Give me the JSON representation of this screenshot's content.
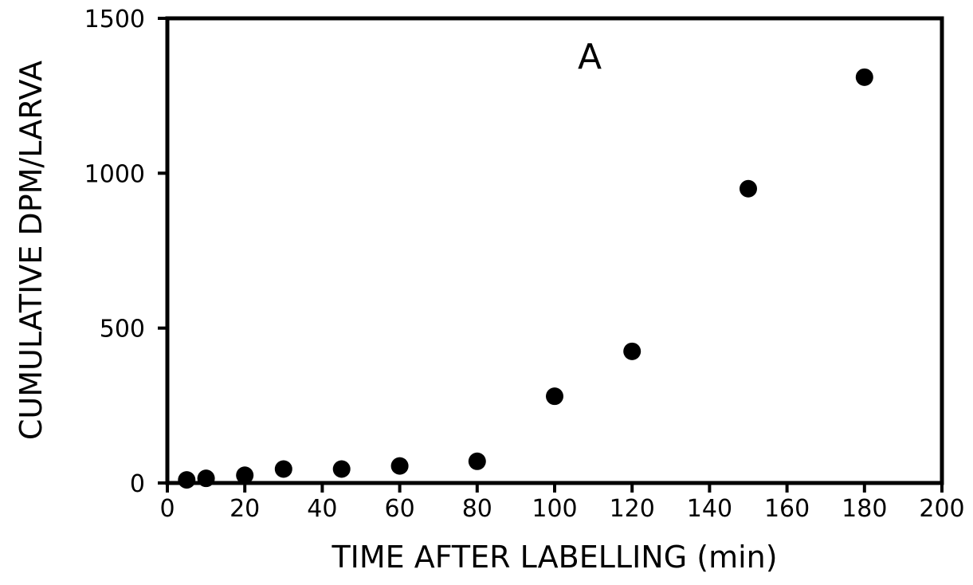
{
  "chart_data": {
    "type": "scatter",
    "title": "",
    "panel_label": "A",
    "xlabel": "TIME AFTER LABELLING (min)",
    "ylabel": "CUMULATIVE DPM/LARVA",
    "xlim": [
      0,
      200
    ],
    "ylim": [
      0,
      1500
    ],
    "xticks": [
      0,
      20,
      40,
      60,
      80,
      100,
      120,
      140,
      160,
      180,
      200
    ],
    "yticks": [
      0,
      500,
      1000,
      1500
    ],
    "grid": false,
    "legend": "none",
    "marker_color": "#000000",
    "series": [
      {
        "x": [
          5,
          10,
          20,
          30,
          45,
          60,
          80,
          100,
          120,
          150,
          180
        ],
        "y": [
          10,
          15,
          25,
          45,
          45,
          55,
          70,
          280,
          425,
          950,
          1310
        ]
      }
    ]
  }
}
